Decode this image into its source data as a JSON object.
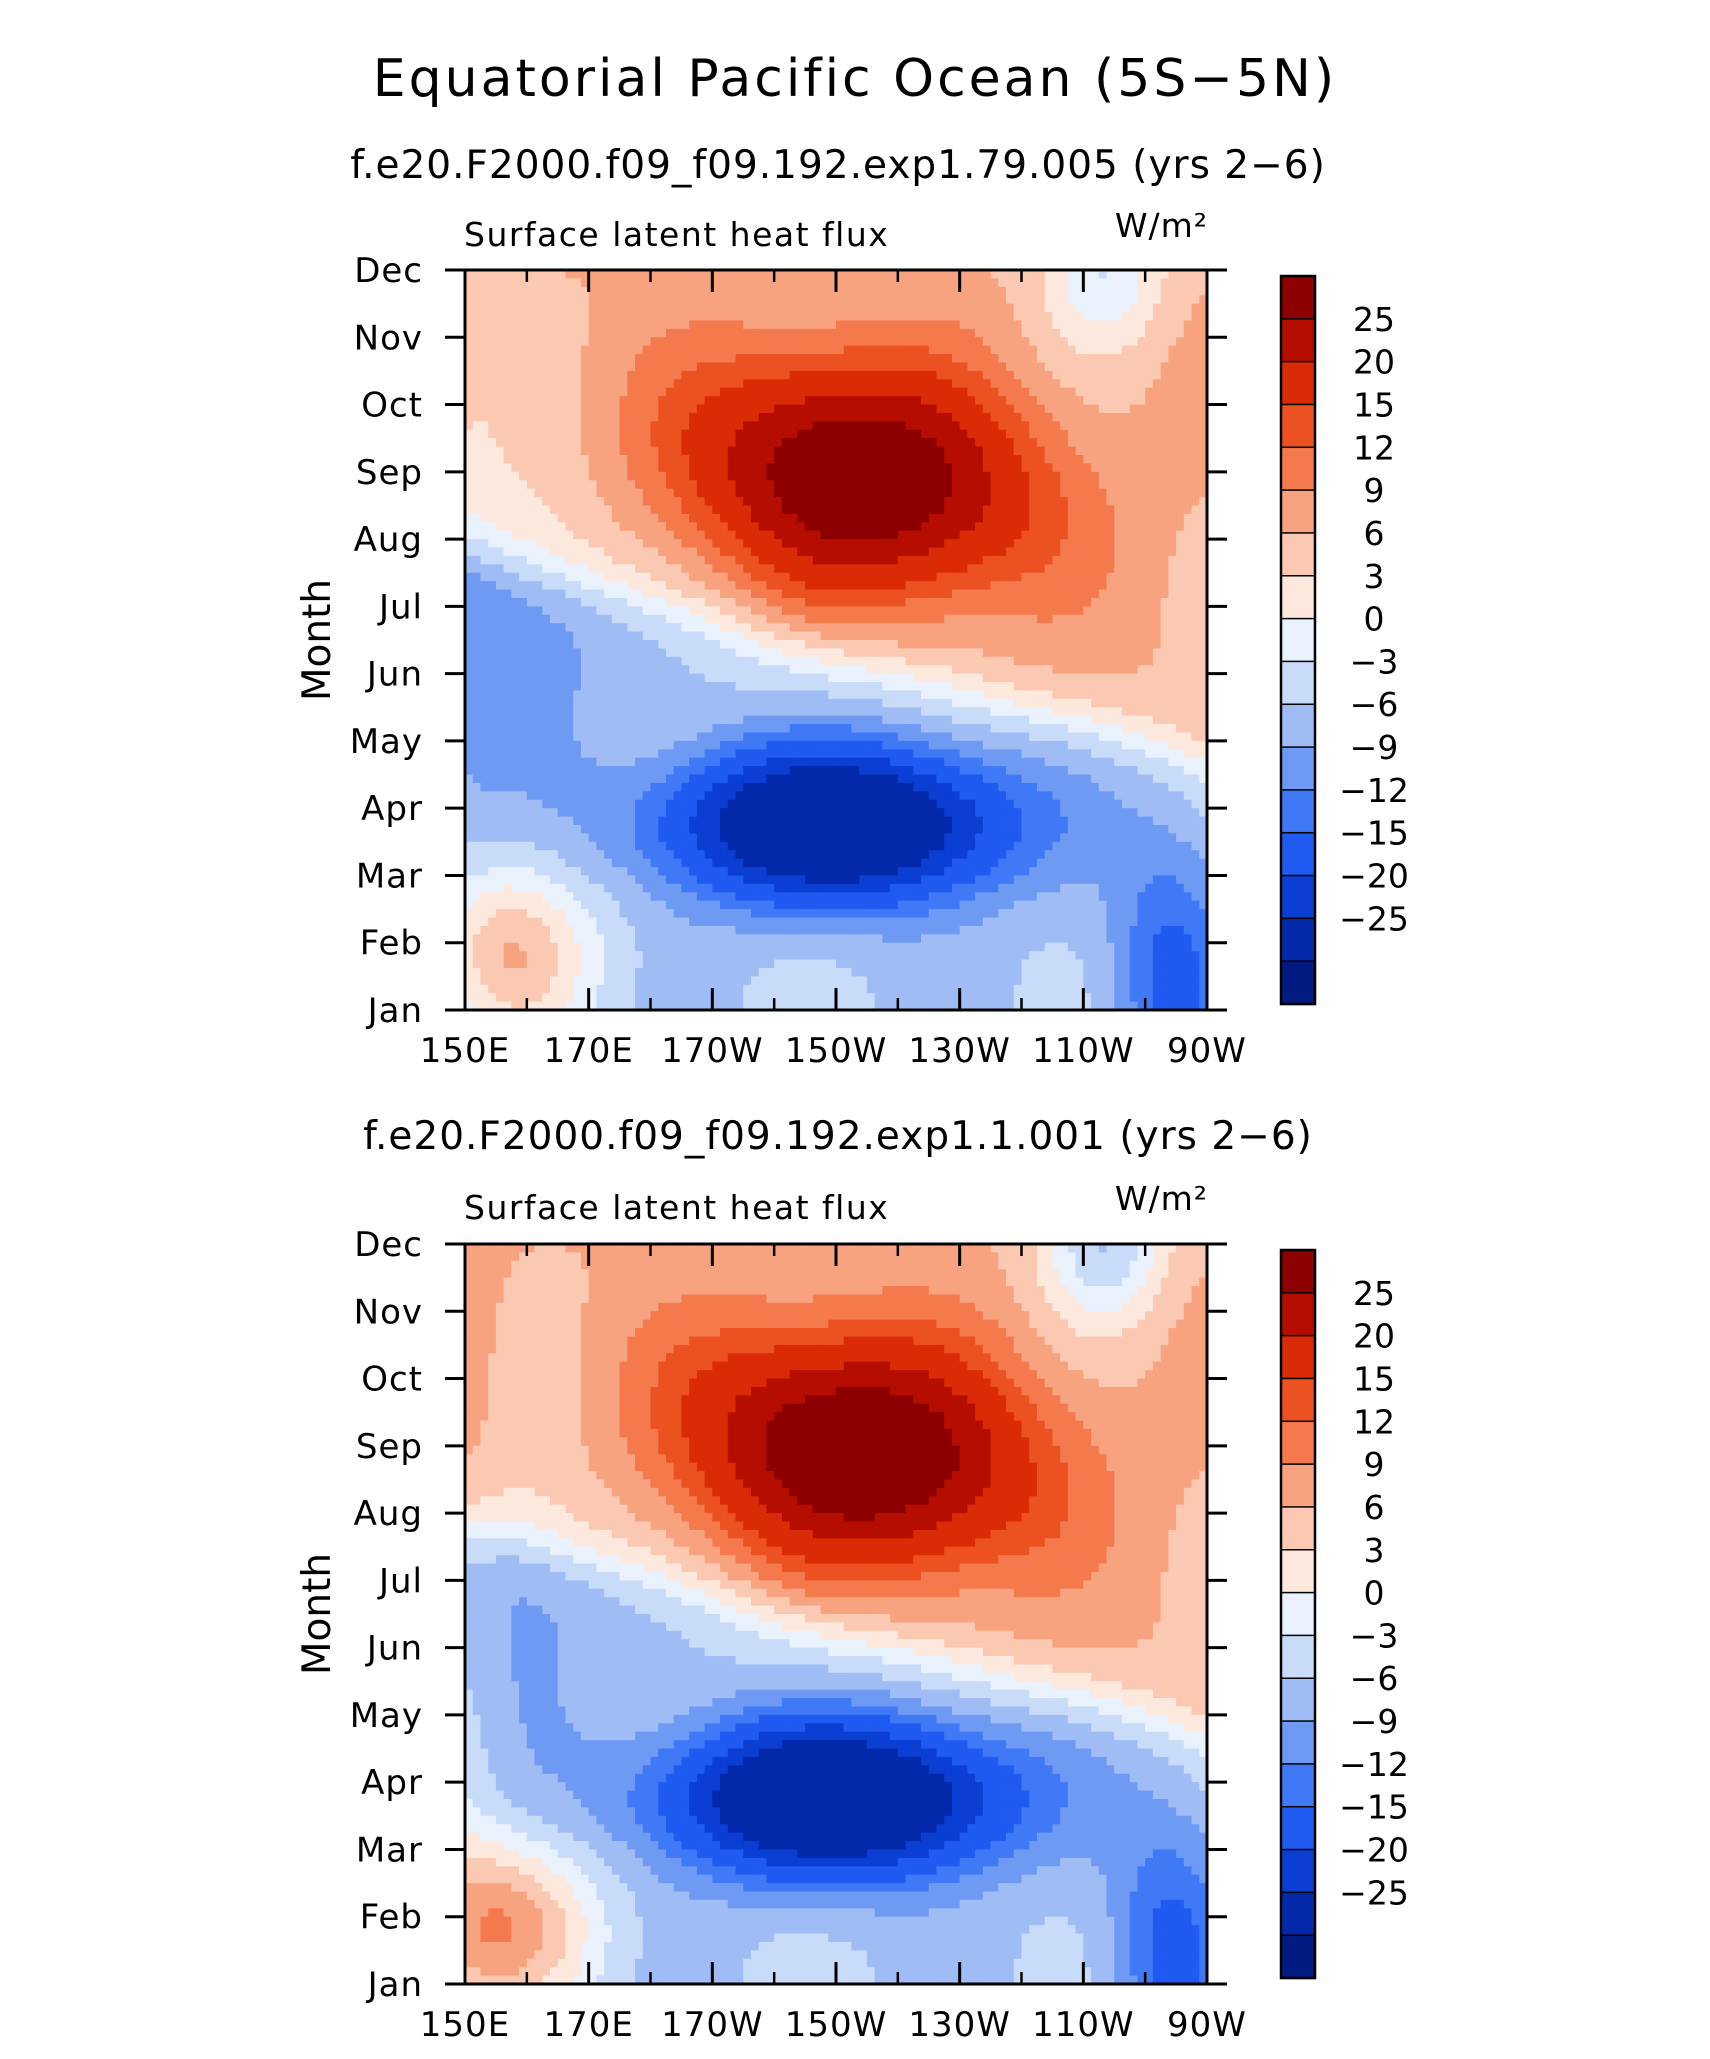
{
  "figure": {
    "title": "Equatorial Pacific Ocean (5S−5N)"
  },
  "colors": {
    "levels": [
      "#001a82",
      "#0428aa",
      "#0b3fd3",
      "#1f5bf1",
      "#4079f5",
      "#6f9af3",
      "#9fbcf5",
      "#c8dcf9",
      "#e9f1fd",
      "#fde8de",
      "#fbc9b2",
      "#f8a37f",
      "#f47a4d",
      "#ec5121",
      "#db2b06",
      "#b50e00",
      "#8c0000"
    ]
  },
  "chart_data": [
    {
      "type": "heatmap",
      "title": "f.e20.F2000.f09_f09.192.exp1.79.005 (yrs 2−6)",
      "subtitle": "Surface latent heat flux",
      "units": "W/m²",
      "ylabel": "Month",
      "xlabel": "",
      "x_ticks": [
        "150E",
        "170E",
        "170W",
        "150W",
        "130W",
        "110W",
        "90W"
      ],
      "x_range_deg": [
        150,
        270
      ],
      "y_ticks": [
        "Jan",
        "Feb",
        "Mar",
        "Apr",
        "May",
        "Jun",
        "Jul",
        "Aug",
        "Sep",
        "Oct",
        "Nov",
        "Dec"
      ],
      "colorbar_labels": [
        "25",
        "20",
        "15",
        "12",
        "9",
        "6",
        "3",
        "0",
        "−3",
        "−6",
        "−9",
        "−12",
        "−15",
        "−20",
        "−25"
      ],
      "levels": [
        -25,
        -20,
        -15,
        -12,
        -9,
        -6,
        -3,
        0,
        3,
        6,
        9,
        12,
        15,
        20,
        25
      ],
      "field": {
        "warm_strength": 26,
        "cold_strength": 33,
        "early_west_warm": 12,
        "late_west_cold": -6,
        "late_east_cold": -9,
        "west_edge_value": -2,
        "note_months": "warm pool propagating westward from Jun-Dec, cold tongue Mar-May central Pacific"
      }
    },
    {
      "type": "heatmap",
      "title": "f.e20.F2000.f09_f09.192.exp1.1.001 (yrs 2−6)",
      "subtitle": "Surface latent heat flux",
      "units": "W/m²",
      "ylabel": "Month",
      "xlabel": "",
      "x_ticks": [
        "150E",
        "170E",
        "170W",
        "150W",
        "130W",
        "110W",
        "90W"
      ],
      "x_range_deg": [
        150,
        270
      ],
      "y_ticks": [
        "Jan",
        "Feb",
        "Mar",
        "Apr",
        "May",
        "Jun",
        "Jul",
        "Aug",
        "Sep",
        "Oct",
        "Nov",
        "Dec"
      ],
      "colorbar_labels": [
        "25",
        "20",
        "15",
        "12",
        "9",
        "6",
        "3",
        "0",
        "−3",
        "−6",
        "−9",
        "−12",
        "−15",
        "−20",
        "−25"
      ],
      "levels": [
        -25,
        -20,
        -15,
        -12,
        -9,
        -6,
        -3,
        0,
        3,
        6,
        9,
        12,
        15,
        20,
        25
      ],
      "field": {
        "warm_strength": 27,
        "cold_strength": 34,
        "early_west_warm": 14,
        "late_west_cold": -5,
        "late_east_cold": -12,
        "west_edge_value": 2,
        "note_months": "warm pool propagating westward from Jun-Dec, cold tongue Mar-May central Pacific"
      }
    }
  ]
}
